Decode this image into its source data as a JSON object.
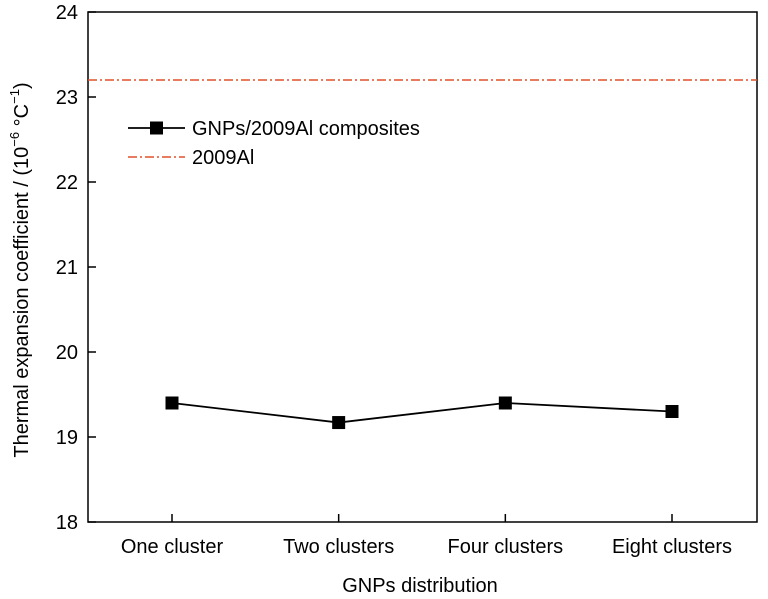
{
  "chart_data": {
    "type": "line",
    "categories": [
      "One cluster",
      "Two clusters",
      "Four clusters",
      "Eight clusters"
    ],
    "series": [
      {
        "name": "GNPs/2009Al composites",
        "values": [
          19.4,
          19.17,
          19.4,
          19.3
        ],
        "color": "#000000",
        "marker": "square"
      }
    ],
    "reference_lines": [
      {
        "name": "2009Al",
        "y": 23.2,
        "color": "#e0512a",
        "style": "dash-dot"
      }
    ],
    "xlabel": "GNPs distribution",
    "ylabel": {
      "text": "Thermal expansion coefficient / (10",
      "exp1": "−6",
      "mid": " °C",
      "exp2": "−1",
      "end": ")"
    },
    "ylim": [
      18,
      24
    ],
    "yticks": [
      18,
      19,
      20,
      21,
      22,
      23,
      24
    ],
    "grid": false,
    "legend_position": "top-left"
  }
}
